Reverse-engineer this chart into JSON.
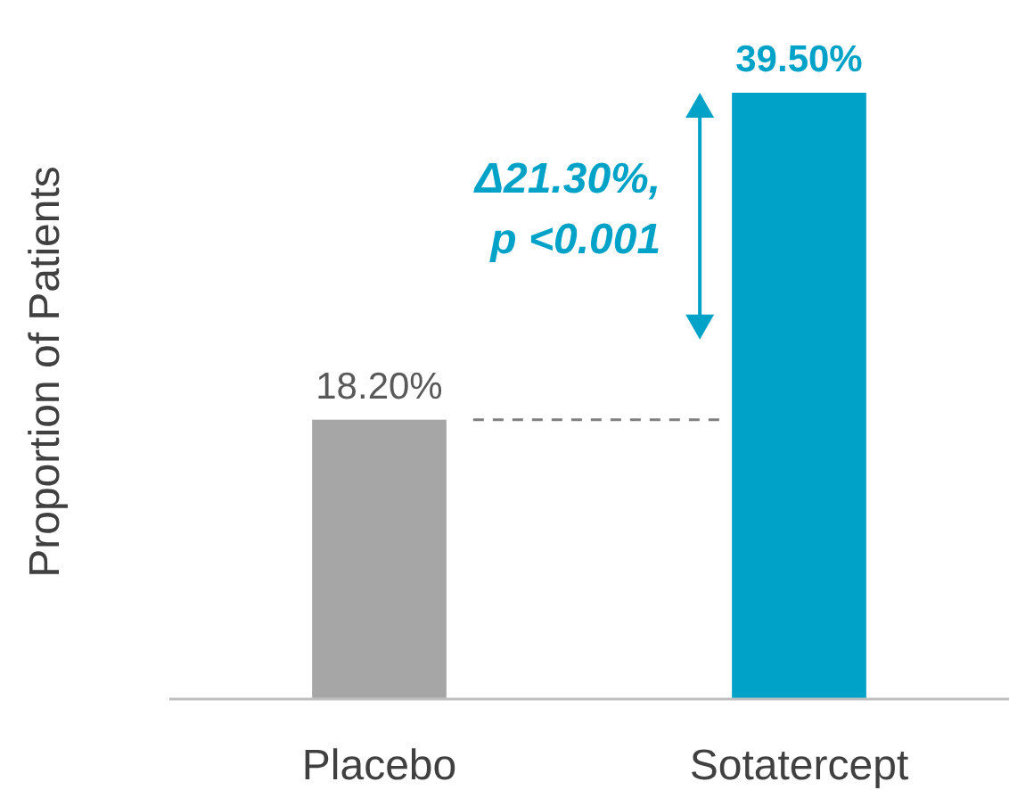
{
  "chart_data": {
    "type": "bar",
    "ylabel": "Proportion of Patients",
    "categories": [
      "Placebo",
      "Sotatercept"
    ],
    "values": [
      18.2,
      39.5
    ],
    "colors": [
      "#a6a6a6",
      "#00a3c7"
    ],
    "value_labels": [
      "18.20%",
      "39.50%"
    ],
    "tick_labels": "x",
    "ref_lines": [
      {
        "axis": "y",
        "value": 18.2,
        "color": "#7f7f7f",
        "line_style": "dashed"
      }
    ],
    "annotations": [
      "Δ21.30%, p <0.001"
    ]
  }
}
